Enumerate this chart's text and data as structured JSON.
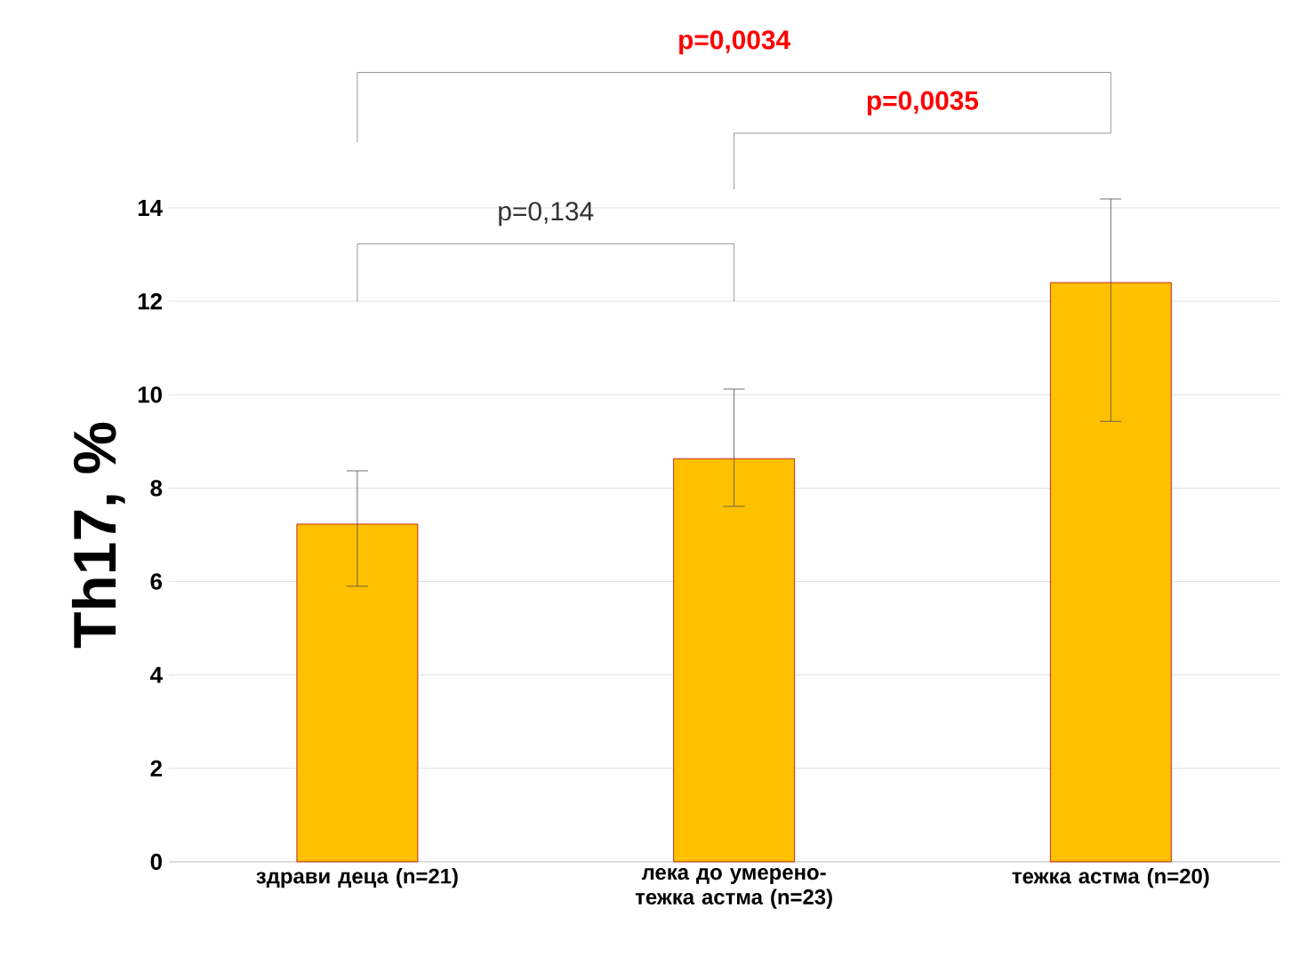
{
  "chart_data": {
    "type": "bar",
    "ylabel": "Th17, %",
    "categories": [
      "здрави деца (n=21)",
      "лека до умерено-тежка астма (n=23)",
      "тежка астма (n=20)"
    ],
    "values": [
      7.23,
      8.63,
      12.4
    ],
    "errors": [
      [
        5.9,
        8.37
      ],
      [
        7.61,
        10.12
      ],
      [
        9.43,
        14.19
      ]
    ],
    "color": "#ffc000",
    "ylim": [
      0,
      14
    ],
    "yticks": [
      0,
      2,
      4,
      6,
      8,
      10,
      12,
      14
    ],
    "grid": "y",
    "annotations": [
      "p=0,134",
      "p=0,0035",
      "p=0,0034"
    ]
  }
}
